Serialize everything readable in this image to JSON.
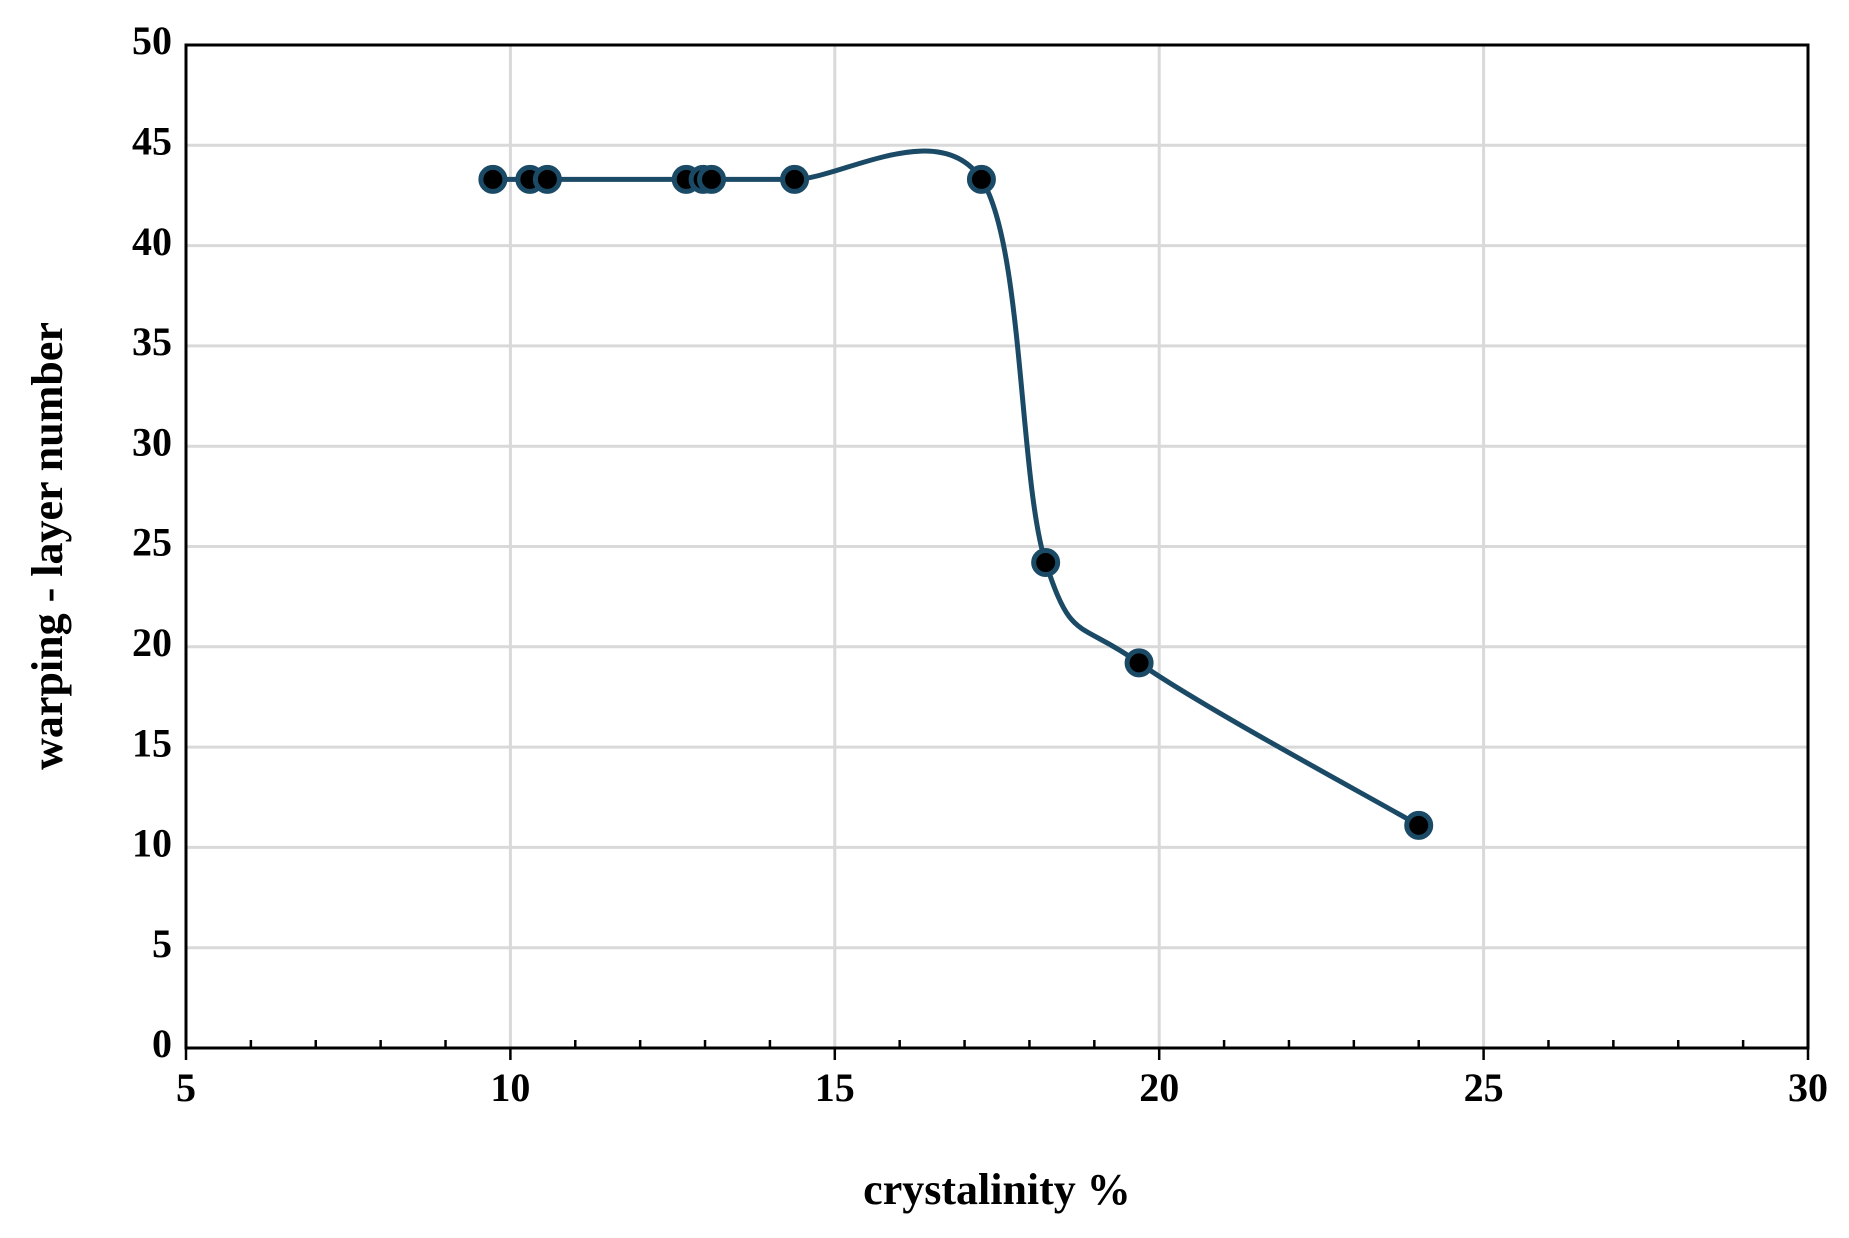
{
  "chart_data": {
    "type": "line",
    "smooth": true,
    "x_label": "crystalinity  %",
    "y_label": "warping  - layer number",
    "x": [
      9.73,
      10.3,
      10.57,
      12.71,
      12.97,
      13.1,
      14.38,
      17.26,
      18.25,
      19.69,
      24.0
    ],
    "series": [
      {
        "name": "warping",
        "color": "#1b4a66",
        "marker_fill": "#000000",
        "values": [
          43.3,
          43.3,
          43.3,
          43.3,
          43.3,
          43.3,
          43.3,
          43.3,
          24.2,
          19.2,
          11.1
        ]
      }
    ],
    "xlim": [
      5,
      30
    ],
    "xticks": [
      5,
      10,
      15,
      20,
      25,
      30
    ],
    "ylim": [
      0,
      50
    ],
    "yticks": [
      0,
      5,
      10,
      15,
      20,
      25,
      30,
      35,
      40,
      45,
      50
    ],
    "grid": true,
    "x_minor_per_major": 5
  }
}
